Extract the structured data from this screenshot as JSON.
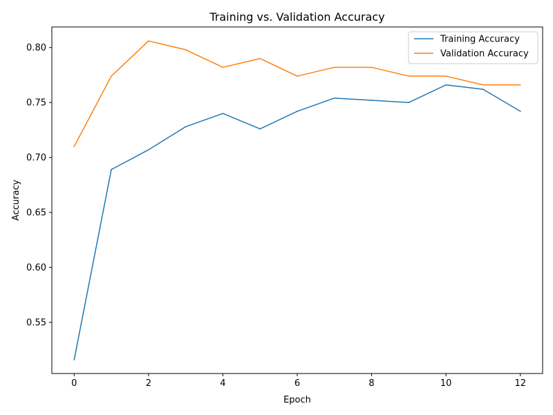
{
  "chart_data": {
    "type": "line",
    "title": "Training vs. Validation Accuracy",
    "xlabel": "Epoch",
    "ylabel": "Accuracy",
    "x": [
      0,
      1,
      2,
      3,
      4,
      5,
      6,
      7,
      8,
      9,
      10,
      11,
      12
    ],
    "xlim": [
      -0.6,
      12.6
    ],
    "ylim": [
      0.5035,
      0.8187
    ],
    "xticks": [
      0,
      2,
      4,
      6,
      8,
      10,
      12
    ],
    "xtick_labels": [
      "0",
      "2",
      "4",
      "6",
      "8",
      "10",
      "12"
    ],
    "yticks": [
      0.55,
      0.6,
      0.65,
      0.7,
      0.75,
      0.8
    ],
    "ytick_labels": [
      "0.55",
      "0.60",
      "0.65",
      "0.70",
      "0.75",
      "0.80"
    ],
    "grid": false,
    "legend_position": "top-right",
    "series": [
      {
        "name": "Training Accuracy",
        "color": "#1f77b4",
        "values": [
          0.516,
          0.689,
          0.707,
          0.728,
          0.74,
          0.726,
          0.742,
          0.754,
          0.752,
          0.75,
          0.766,
          0.762,
          0.742
        ]
      },
      {
        "name": "Validation Accuracy",
        "color": "#ff7f0e",
        "values": [
          0.71,
          0.774,
          0.806,
          0.798,
          0.782,
          0.79,
          0.774,
          0.782,
          0.782,
          0.774,
          0.774,
          0.766,
          0.766
        ]
      }
    ]
  }
}
